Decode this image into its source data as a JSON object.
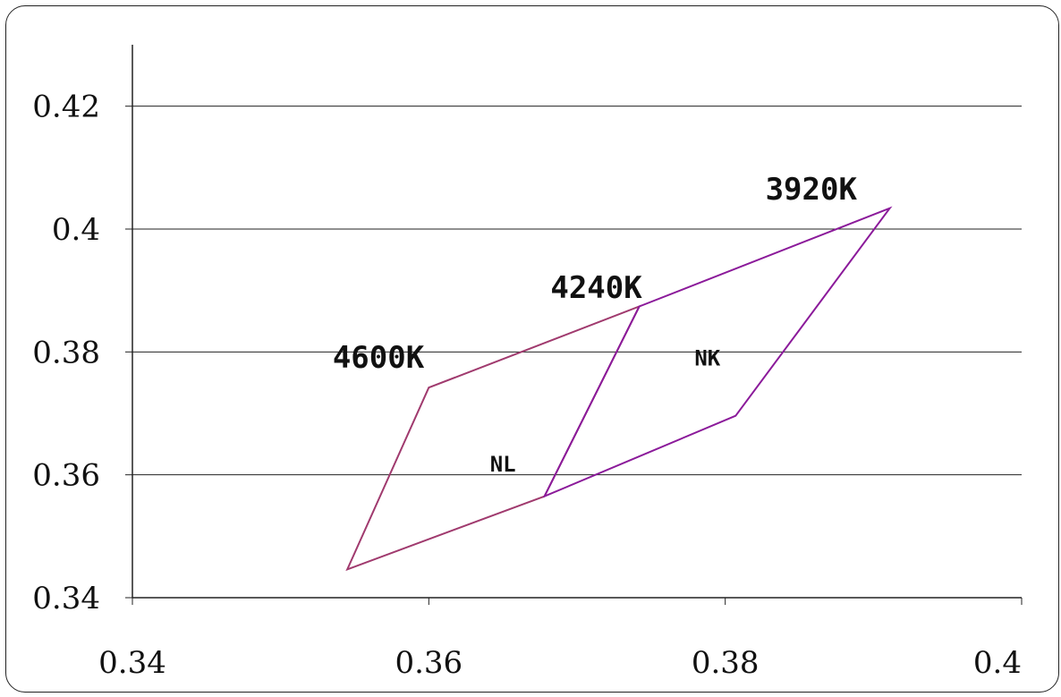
{
  "chart_data": {
    "type": "line",
    "title": "",
    "xlabel": "",
    "ylabel": "",
    "xlim": [
      0.34,
      0.4
    ],
    "ylim": [
      0.34,
      0.43
    ],
    "grid": "horizontal",
    "x_ticks": [
      "0.34",
      "0.36",
      "0.38",
      "0.4"
    ],
    "y_ticks": [
      "0.34",
      "0.36",
      "0.38",
      "0.4",
      "0.42"
    ],
    "x_tick_values": [
      0.34,
      0.36,
      0.38,
      0.4
    ],
    "y_tick_values": [
      0.34,
      0.36,
      0.38,
      0.4,
      0.42
    ],
    "series": [
      {
        "name": "NL",
        "color": "#a03a6e",
        "points": [
          [
            0.3545,
            0.3446
          ],
          [
            0.36,
            0.3742
          ],
          [
            0.3742,
            0.3874
          ],
          [
            0.3678,
            0.3565
          ]
        ]
      },
      {
        "name": "NK",
        "color": "#8b1a9a",
        "points": [
          [
            0.3678,
            0.3565
          ],
          [
            0.3742,
            0.3874
          ],
          [
            0.3911,
            0.4034
          ],
          [
            0.3807,
            0.3696
          ]
        ]
      }
    ],
    "annotations": [
      {
        "text": "4600K",
        "x": 0.3566,
        "y": 0.3774,
        "size": "large"
      },
      {
        "text": "4240K",
        "x": 0.3713,
        "y": 0.3888,
        "size": "large"
      },
      {
        "text": "3920K",
        "x": 0.3858,
        "y": 0.4048,
        "size": "large"
      },
      {
        "text": "NL",
        "x": 0.365,
        "y": 0.3605,
        "size": "small"
      },
      {
        "text": "NK",
        "x": 0.3788,
        "y": 0.3778,
        "size": "small"
      }
    ]
  }
}
